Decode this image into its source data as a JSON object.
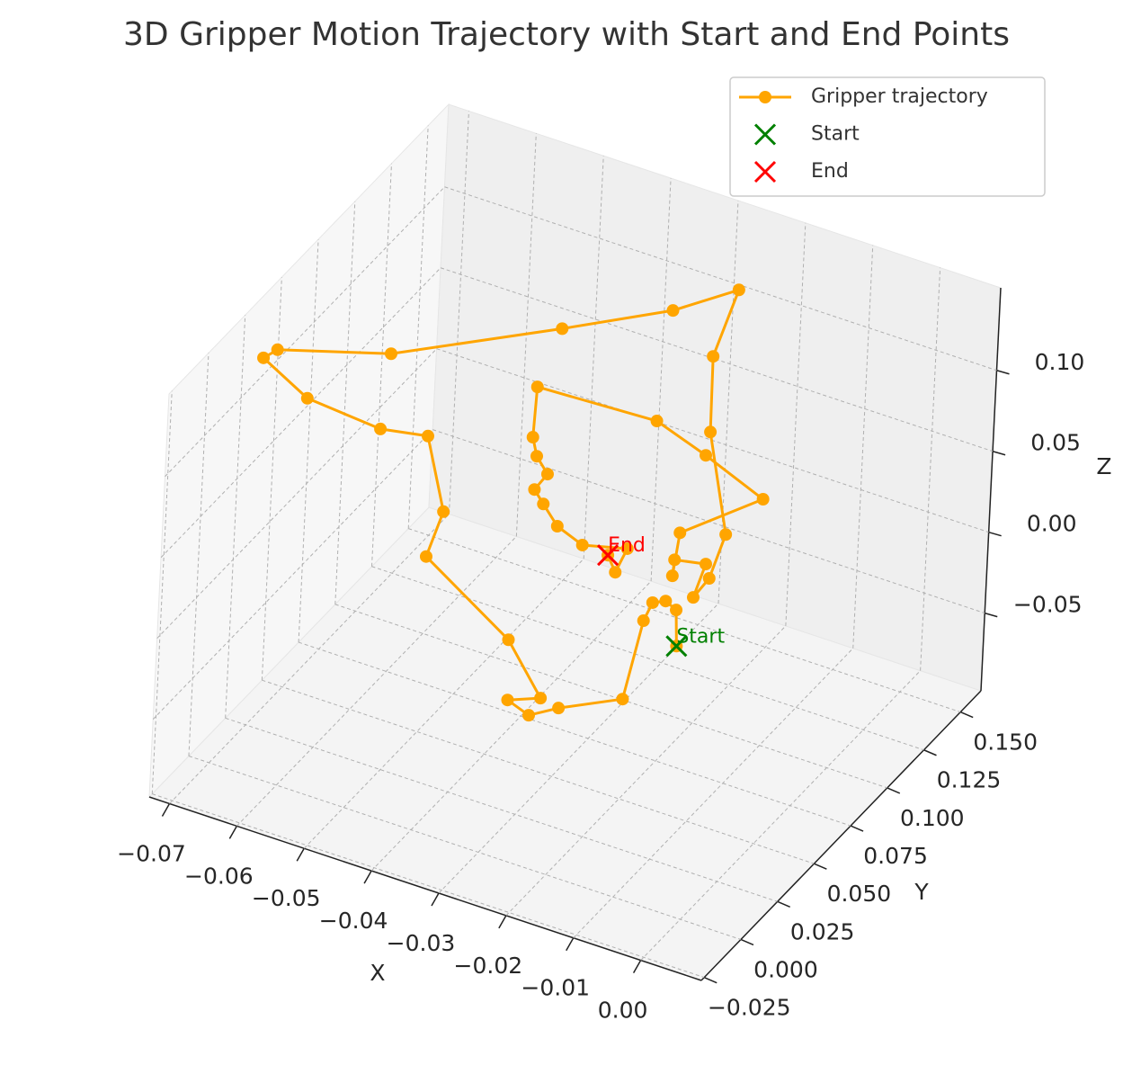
{
  "chart_data": {
    "type": "scatter3d",
    "title": "3D Gripper Motion Trajectory with Start and End Points",
    "xlabel": "X",
    "ylabel": "Y",
    "zlabel": "Z",
    "xlim": [
      -0.073,
      0.009
    ],
    "ylim": [
      -0.027,
      0.164
    ],
    "zlim": [
      -0.098,
      0.151
    ],
    "xticks": [
      {
        "value": -0.07,
        "label": "−0.07"
      },
      {
        "value": -0.06,
        "label": "−0.06"
      },
      {
        "value": -0.05,
        "label": "−0.05"
      },
      {
        "value": -0.04,
        "label": "−0.04"
      },
      {
        "value": -0.03,
        "label": "−0.03"
      },
      {
        "value": -0.02,
        "label": "−0.02"
      },
      {
        "value": -0.01,
        "label": "−0.01"
      },
      {
        "value": 0,
        "label": "0.00"
      }
    ],
    "yticks": [
      {
        "value": -0.025,
        "label": "−0.025"
      },
      {
        "value": 0,
        "label": "0.000"
      },
      {
        "value": 0.025,
        "label": "0.025"
      },
      {
        "value": 0.05,
        "label": "0.050"
      },
      {
        "value": 0.075,
        "label": "0.075"
      },
      {
        "value": 0.1,
        "label": "0.100"
      },
      {
        "value": 0.125,
        "label": "0.125"
      },
      {
        "value": 0.15,
        "label": "0.150"
      }
    ],
    "zticks": [
      {
        "value": -0.05,
        "label": "−0.05"
      },
      {
        "value": 0,
        "label": "0.00"
      },
      {
        "value": 0.05,
        "label": "0.05"
      },
      {
        "value": 0.1,
        "label": "0.10"
      }
    ],
    "grid": true,
    "legend": "upper right",
    "series": [
      {
        "name": "Gripper trajectory",
        "color": "#ffa500",
        "marker": "o",
        "x": [
          -0.0147,
          -0.015,
          -0.0166,
          -0.0185,
          -0.0197,
          -0.0222,
          -0.0315,
          -0.0358,
          -0.039,
          -0.0342,
          -0.0393,
          -0.0438,
          -0.0416,
          -0.0444,
          -0.0514,
          -0.0623,
          -0.069,
          -0.067,
          -0.0585,
          -0.0418,
          -0.0298,
          -0.0264,
          -0.0236,
          -0.0194,
          -0.0083,
          -0.0104,
          -0.0126,
          -0.011,
          -0.0156,
          -0.0158,
          -0.015,
          -0.0031,
          -0.0199,
          -0.0273,
          -0.045,
          -0.0453,
          -0.0446,
          -0.0429,
          -0.0447,
          -0.0433,
          -0.0411,
          -0.0373,
          -0.0307,
          -0.0323,
          -0.0335
        ],
        "y": [
          0.06,
          0.06,
          0.06,
          0.06,
          0.06,
          0.06,
          0.06,
          0.06,
          0.06,
          0.06,
          0.06,
          0.02,
          0.02,
          0.02,
          0.02,
          0.02,
          0.02,
          0.02,
          0.06,
          0.1,
          0.12,
          0.15,
          0.12,
          0.1,
          0.06,
          0.06,
          0.06,
          0.06,
          0.06,
          0.06,
          0.06,
          0.06,
          0.1,
          0.1,
          0.1,
          0.1,
          0.1,
          0.1,
          0.1,
          0.1,
          0.1,
          0.1,
          0.1,
          0.1,
          0.1
        ],
        "z": [
          -0.0057,
          0.0162,
          0.0195,
          0.0159,
          0.0031,
          -0.0488,
          -0.0672,
          -0.0776,
          -0.0726,
          -0.0648,
          -0.0358,
          0.0469,
          0.0777,
          0.1205,
          0.1152,
          0.1191,
          0.1348,
          0.1426,
          0.1144,
          0.1155,
          0.1246,
          0.1139,
          0.1048,
          0.0826,
          0.0721,
          0.0421,
          0.0273,
          0.0501,
          0.0464,
          0.0362,
          0.0639,
          0.1011,
          0.0675,
          0.0785,
          0.0751,
          0.0436,
          0.0328,
          0.0241,
          0.0121,
          0.0051,
          -0.0056,
          -0.012,
          -0.0051,
          -0.0219,
          -0.013
        ]
      },
      {
        "name": "Start",
        "color": "#008000",
        "marker": "x",
        "x": [
          -0.0147
        ],
        "y": [
          0.06
        ],
        "z": [
          -0.0057
        ]
      },
      {
        "name": "End",
        "color": "#ff0000",
        "marker": "x",
        "x": [
          -0.0335
        ],
        "y": [
          0.1
        ],
        "z": [
          -0.013
        ]
      }
    ]
  }
}
